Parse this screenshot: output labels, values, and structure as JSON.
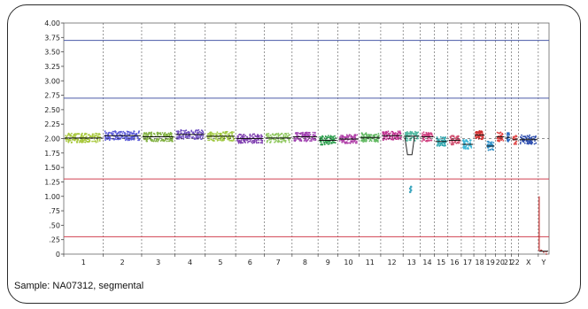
{
  "chart_data": {
    "type": "scatter",
    "caption": "Sample: NA07312, segmental",
    "y_ticks": [
      "4.00",
      "3.75",
      "3.50",
      "3.25",
      "3.00",
      "2.75",
      "2.50",
      "2.25",
      "2.00",
      "1.75",
      "1.50",
      "1.25",
      "1.00",
      ".75",
      ".50",
      ".25",
      "0"
    ],
    "ylim": [
      0,
      4
    ],
    "reference_lines": [
      {
        "value": 3.7,
        "color": "#4a5aa8"
      },
      {
        "value": 2.7,
        "color": "#4a5aa8"
      },
      {
        "value": 1.3,
        "color": "#d04050"
      },
      {
        "value": 0.3,
        "color": "#d04050"
      }
    ],
    "chromosomes": [
      {
        "label": "1",
        "mean": 2.01,
        "color": "#a8c83c"
      },
      {
        "label": "2",
        "mean": 2.05,
        "color": "#5a5ad8"
      },
      {
        "label": "3",
        "mean": 2.03,
        "color": "#80b040"
      },
      {
        "label": "4",
        "mean": 2.07,
        "color": "#7050c0"
      },
      {
        "label": "5",
        "mean": 2.04,
        "color": "#a0c840"
      },
      {
        "label": "6",
        "mean": 2.0,
        "color": "#8040b0"
      },
      {
        "label": "7",
        "mean": 2.01,
        "color": "#90c860"
      },
      {
        "label": "8",
        "mean": 2.03,
        "color": "#a040b0"
      },
      {
        "label": "9",
        "mean": 1.97,
        "color": "#30a050"
      },
      {
        "label": "10",
        "mean": 1.99,
        "color": "#b040a8"
      },
      {
        "label": "11",
        "mean": 2.02,
        "color": "#60b860"
      },
      {
        "label": "12",
        "mean": 2.05,
        "color": "#c03090"
      },
      {
        "label": "13",
        "mean": 2.04,
        "color": "#50b8a0"
      },
      {
        "label": "14",
        "mean": 2.03,
        "color": "#d04080"
      },
      {
        "label": "15",
        "mean": 1.95,
        "color": "#30a8b0"
      },
      {
        "label": "16",
        "mean": 1.97,
        "color": "#d05070"
      },
      {
        "label": "17",
        "mean": 1.9,
        "color": "#40b8d8"
      },
      {
        "label": "18",
        "mean": 2.06,
        "color": "#d03030"
      },
      {
        "label": "19",
        "mean": 1.87,
        "color": "#3090c8"
      },
      {
        "label": "20",
        "mean": 2.03,
        "color": "#e04040"
      },
      {
        "label": "21",
        "mean": 2.02,
        "color": "#2868c0"
      },
      {
        "label": "22",
        "mean": 1.98,
        "color": "#e05050"
      },
      {
        "label": "X",
        "mean": 1.98,
        "color": "#3050b0"
      },
      {
        "label": "Y",
        "mean": 0.05,
        "color": "#c04040"
      }
    ],
    "grid": true
  }
}
